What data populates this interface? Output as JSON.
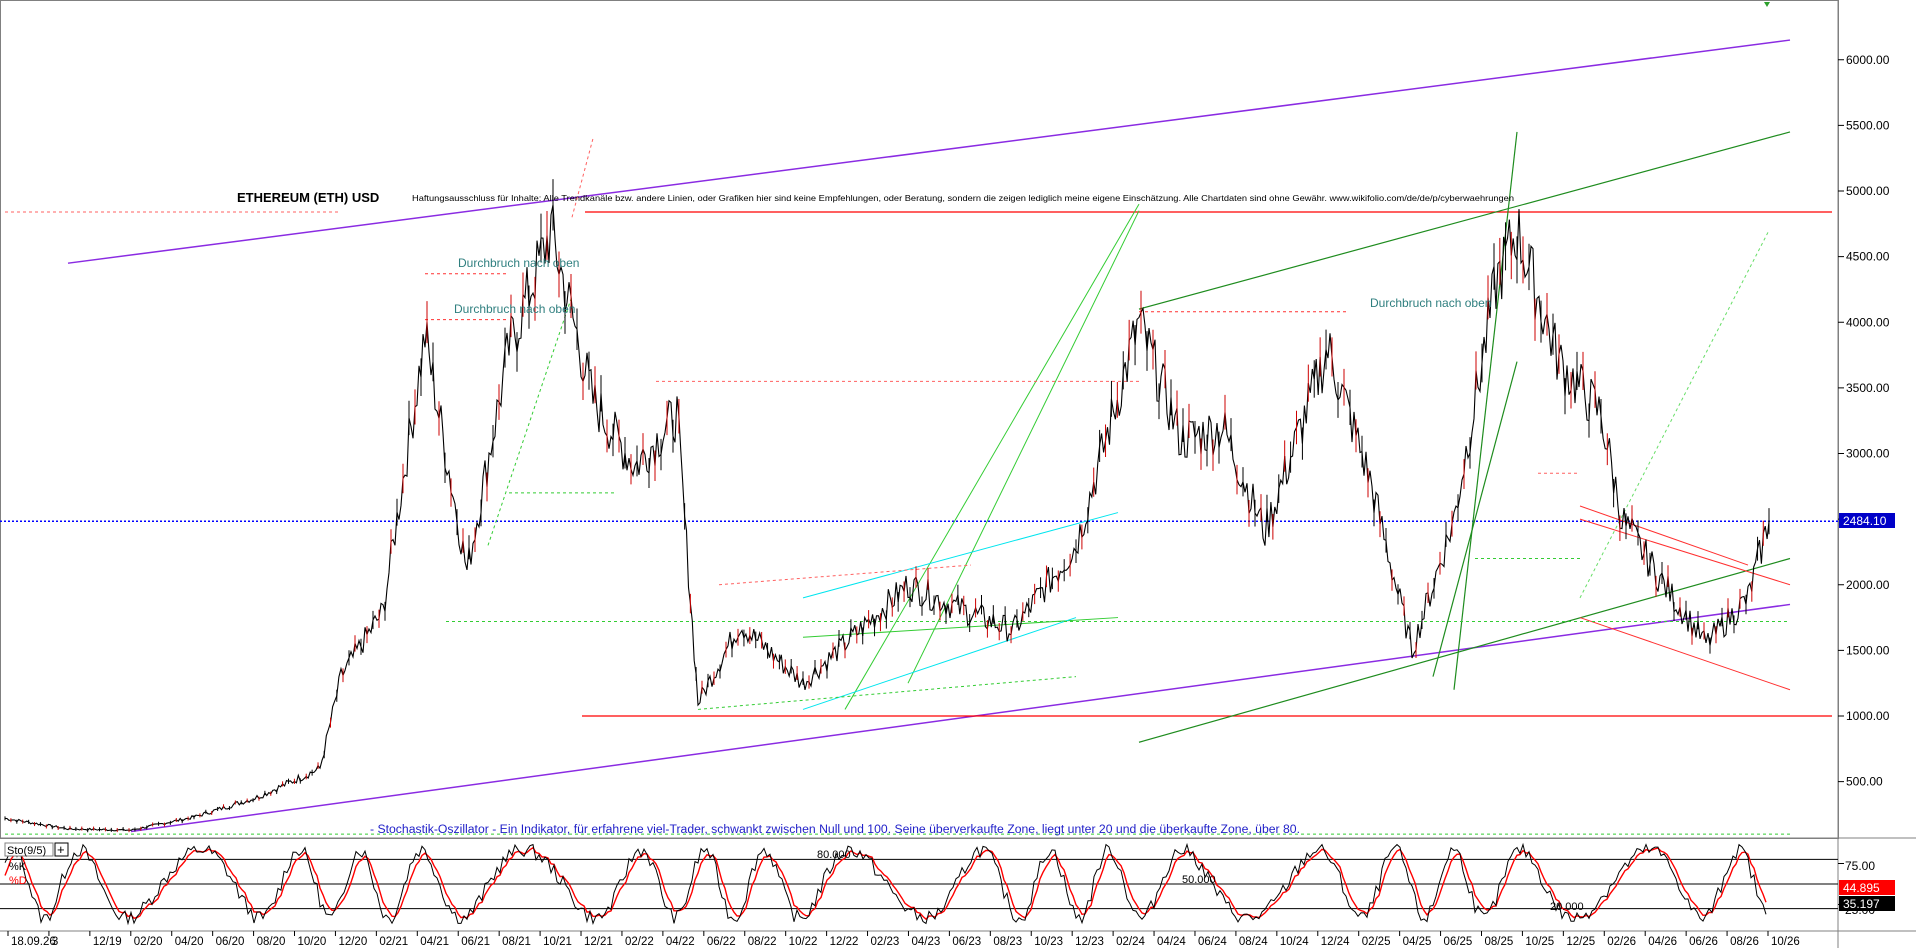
{
  "chart_data": {
    "type": "line",
    "title": "ETHEREUM (ETH) USD",
    "disclaimer": "Haftungsausschluss für Inhalte: Alle Trendkanäle bzw. andere Linien, oder Grafiken hier sind keine Empfehlungen, oder Beratung, sondern die zeigen lediglich meine eigene Einschätzung. Alle Chartdaten sind ohne Gewähr.  www.wikifolio.com/de/de/p/cyberwaehrungen",
    "oscillator_note": "- Stochastik-Oszillator - Ein Indikator, für erfahrene viel-Trader, schwankt zwischen Null und 100. Seine überverkaufte Zone, liegt unter 20 und die überkaufte Zone, über 80.",
    "annotations": [
      {
        "text": "Durchbruch nach oben",
        "x": "05/21",
        "y": 4430
      },
      {
        "text": "Durchbruch nach oben",
        "x": "05/21",
        "y": 4080
      },
      {
        "text": "Durchbruch nach oben",
        "x": "12/24",
        "y": 4130
      }
    ],
    "y_axis": {
      "min": 0,
      "max": 6400,
      "ticks": [
        "6000.00",
        "5500.00",
        "5000.00",
        "4500.00",
        "4000.00",
        "3500.00",
        "3000.00",
        "2500.00",
        "2000.00",
        "1500.00",
        "1000.00",
        "500.00"
      ]
    },
    "x_ticks": [
      "18.09.26",
      "3",
      "12/19",
      "02/20",
      "04/20",
      "06/20",
      "08/20",
      "10/20",
      "12/20",
      "02/21",
      "04/21",
      "06/21",
      "08/21",
      "10/21",
      "12/21",
      "02/22",
      "04/22",
      "06/22",
      "08/22",
      "10/22",
      "12/22",
      "02/23",
      "04/23",
      "06/23",
      "08/23",
      "10/23",
      "12/23",
      "02/24",
      "04/24",
      "06/24",
      "08/24",
      "10/24",
      "12/24",
      "02/25",
      "04/25",
      "06/25",
      "08/25",
      "10/25",
      "12/25",
      "02/26",
      "04/26",
      "06/26",
      "08/26",
      "10/26"
    ],
    "last_price": "2484.10",
    "series": [
      {
        "name": "ETH",
        "color": "#000000",
        "x": [
          "2019-09",
          "2019-12",
          "2020-03",
          "2020-06",
          "2020-09",
          "2020-12",
          "2021-01",
          "2021-03",
          "2021-05",
          "2021-07",
          "2021-09",
          "2021-11",
          "2022-01",
          "2022-03",
          "2022-05",
          "2022-06",
          "2022-08",
          "2022-11",
          "2023-01",
          "2023-04",
          "2023-06",
          "2023-09",
          "2023-12",
          "2024-03",
          "2024-05",
          "2024-07",
          "2024-09",
          "2024-12",
          "2025-02",
          "2025-04",
          "2025-06",
          "2025-08",
          "2025-09",
          "2025-11",
          "2026-01",
          "2026-02",
          "2026-04",
          "2026-06",
          "2026-08",
          "2026-09"
        ],
        "y": [
          220,
          140,
          130,
          230,
          380,
          600,
          1300,
          1800,
          3900,
          2100,
          3800,
          4700,
          3400,
          2900,
          3300,
          1100,
          1700,
          1250,
          1550,
          2000,
          1850,
          1650,
          2300,
          4000,
          3100,
          3200,
          2400,
          3800,
          2800,
          1500,
          2500,
          4300,
          4700,
          3700,
          3300,
          2500,
          2000,
          1550,
          1900,
          2484
        ]
      }
    ],
    "lines": {
      "purple_top": {
        "color": "#8a2be2",
        "from": [
          "2019-12",
          4450
        ],
        "to": [
          "2026-10",
          6150
        ]
      },
      "purple_bottom": {
        "color": "#8a2be2",
        "from": [
          "2020-03",
          120
        ],
        "to": [
          "2026-10",
          1850
        ]
      },
      "red_horizontal_top": {
        "color": "#ff0000",
        "y": 4840
      },
      "red_horizontal_bottom": {
        "color": "#ff0000",
        "y": 1000
      },
      "blue_dotted": {
        "color": "#0000ff",
        "y": 2484.1
      }
    },
    "stochastic": {
      "label": "Sto(9/5)",
      "k_label": "%K",
      "d_label": "%D",
      "k_value": "44.895",
      "d_value": "35.197",
      "levels": [
        "80.000",
        "50.000",
        "20.000"
      ],
      "ticks": [
        "75.00",
        "25.00"
      ],
      "k_color": "#000000",
      "d_color": "#ff0000"
    }
  }
}
